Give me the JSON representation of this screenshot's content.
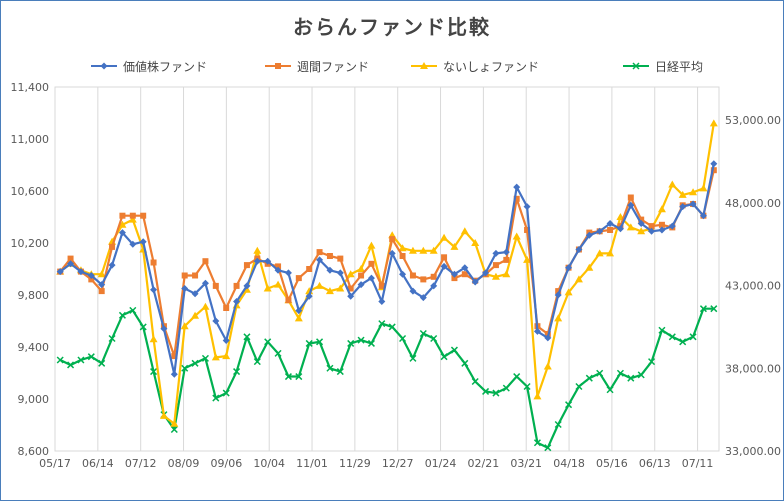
{
  "chart_data": {
    "type": "line",
    "title": "おらんファンド比較",
    "x_labels": [
      "05/17",
      "06/14",
      "07/12",
      "08/09",
      "09/06",
      "10/04",
      "11/01",
      "11/29",
      "12/27",
      "01/24",
      "02/21",
      "03/21",
      "04/18",
      "05/16",
      "06/13",
      "07/11"
    ],
    "y_left": {
      "min": 8600,
      "max": 11400,
      "ticks": [
        "8,600",
        "9,000",
        "9,400",
        "9,800",
        "10,200",
        "10,600",
        "11,000",
        "11,400"
      ]
    },
    "y_right": {
      "min": 33000,
      "max": 55000,
      "ticks": [
        "33,000.00",
        "38,000.00",
        "43,000.00",
        "48,000.00",
        "53,000.00"
      ]
    },
    "grid": "vertical",
    "legend_position": "top",
    "series": [
      {
        "name": "価値株ファンド",
        "axis": "left",
        "color": "#4472c4",
        "marker": "diamond",
        "values": [
          9980,
          10040,
          9980,
          9950,
          9880,
          10030,
          10280,
          10190,
          10210,
          9840,
          9540,
          9190,
          9850,
          9810,
          9890,
          9600,
          9450,
          9750,
          9870,
          10060,
          10060,
          9990,
          9970,
          9680,
          9790,
          10070,
          9990,
          9970,
          9790,
          9880,
          9930,
          9750,
          10120,
          9960,
          9830,
          9780,
          9870,
          10020,
          9960,
          10010,
          9900,
          9970,
          10120,
          10130,
          10630,
          10480,
          9520,
          9470,
          9800,
          10010,
          10150,
          10260,
          10290,
          10350,
          10310,
          10490,
          10350,
          10290,
          10300,
          10330,
          10480,
          10500,
          10410,
          10810
        ]
      },
      {
        "name": "週間ファンド",
        "axis": "left",
        "color": "#ed7d31",
        "marker": "square",
        "values": [
          9980,
          10080,
          9980,
          9920,
          9830,
          10170,
          10410,
          10410,
          10410,
          10050,
          9560,
          9330,
          9950,
          9950,
          10060,
          9870,
          9700,
          9870,
          10030,
          10080,
          10040,
          10020,
          9760,
          9930,
          10000,
          10130,
          10100,
          10080,
          9850,
          9950,
          10040,
          9870,
          10230,
          10100,
          9950,
          9920,
          9940,
          10090,
          9930,
          9960,
          9910,
          9960,
          10030,
          10070,
          10540,
          10300,
          9560,
          9500,
          9830,
          10010,
          10150,
          10280,
          10290,
          10300,
          10330,
          10550,
          10380,
          10330,
          10340,
          10320,
          10490,
          10500,
          10410,
          10760
        ]
      },
      {
        "name": "ないしょファンド",
        "axis": "left",
        "color": "#ffc000",
        "marker": "triangle",
        "values": [
          9980,
          10040,
          9990,
          9960,
          9960,
          10210,
          10340,
          10380,
          10150,
          9460,
          8870,
          8810,
          9560,
          9640,
          9710,
          9320,
          9330,
          9720,
          9840,
          10140,
          9850,
          9880,
          9760,
          9620,
          9830,
          9870,
          9830,
          9850,
          9960,
          10000,
          10180,
          9860,
          10260,
          10160,
          10140,
          10140,
          10140,
          10240,
          10170,
          10290,
          10200,
          9960,
          9940,
          9960,
          10250,
          10070,
          9020,
          9250,
          9620,
          9820,
          9920,
          10010,
          10120,
          10120,
          10400,
          10320,
          10290,
          10310,
          10460,
          10650,
          10570,
          10590,
          10620,
          11120
        ]
      },
      {
        "name": "日経平均",
        "axis": "right",
        "color": "#00b050",
        "marker": "x",
        "values": [
          38500,
          38200,
          38500,
          38700,
          38300,
          39800,
          41200,
          41500,
          40500,
          37800,
          35200,
          34300,
          38000,
          38300,
          38600,
          36200,
          36500,
          37800,
          39900,
          38400,
          39600,
          38900,
          37500,
          37500,
          39500,
          39600,
          38000,
          37800,
          39500,
          39700,
          39500,
          40700,
          40500,
          39800,
          38600,
          40100,
          39800,
          38700,
          39100,
          38300,
          37200,
          36600,
          36500,
          36800,
          37500,
          36900,
          33500,
          33200,
          34600,
          35800,
          36900,
          37400,
          37700,
          36700,
          37700,
          37400,
          37600,
          38400,
          40300,
          39900,
          39600,
          39900,
          41600,
          41600
        ]
      }
    ]
  }
}
